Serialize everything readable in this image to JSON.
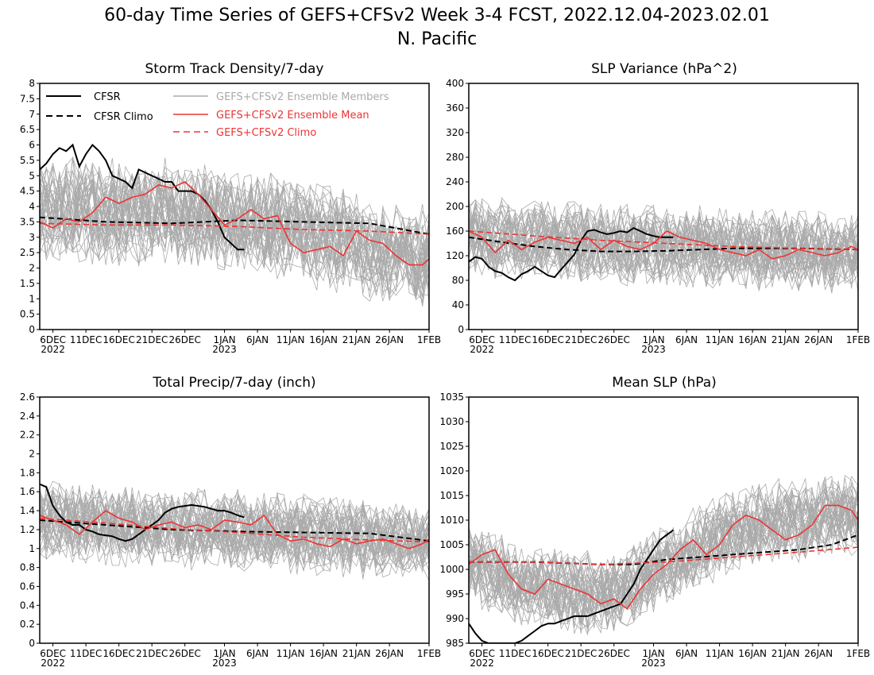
{
  "figure": {
    "title": "60-day Time Series of GEFS+CFSv2 Week 3-4 FCST, 2022.12.04-2023.02.01",
    "region": "N. Pacific"
  },
  "legend": {
    "cfsr": "CFSR",
    "cfsr_climo": "CFSR Climo",
    "members": "GEFS+CFSv2 Ensemble Members",
    "mean": "GEFS+CFSv2 Ensemble Mean",
    "climo": "GEFS+CFSv2 Climo"
  },
  "colors": {
    "cfsr": "#000000",
    "members": "#aaaaaa",
    "mean": "#ee3333",
    "climo": "#ee3333"
  },
  "x_axis": {
    "ticks": [
      {
        "day": 2,
        "label": "6DEC",
        "sub": "2022"
      },
      {
        "day": 7,
        "label": "11DEC",
        "sub": ""
      },
      {
        "day": 12,
        "label": "16DEC",
        "sub": ""
      },
      {
        "day": 17,
        "label": "21DEC",
        "sub": ""
      },
      {
        "day": 22,
        "label": "26DEC",
        "sub": ""
      },
      {
        "day": 28,
        "label": "1JAN",
        "sub": "2023"
      },
      {
        "day": 33,
        "label": "6JAN",
        "sub": ""
      },
      {
        "day": 38,
        "label": "11JAN",
        "sub": ""
      },
      {
        "day": 43,
        "label": "16JAN",
        "sub": ""
      },
      {
        "day": 48,
        "label": "21JAN",
        "sub": ""
      },
      {
        "day": 53,
        "label": "26JAN",
        "sub": ""
      },
      {
        "day": 59,
        "label": "1FEB",
        "sub": ""
      }
    ],
    "range": [
      0,
      59
    ]
  },
  "chart_data": [
    {
      "type": "line",
      "title": "Storm Track Density/7-day",
      "ylim": [
        0,
        8
      ],
      "yticks": [
        "0",
        "0.5",
        "1",
        "1.5",
        "2",
        "2.5",
        "3",
        "3.5",
        "4",
        "4.5",
        "5",
        "5.5",
        "6",
        "6.5",
        "7",
        "7.5",
        "8"
      ],
      "member_band": {
        "center": [
          3.9,
          3.9,
          3.9,
          3.8,
          3.8,
          3.8,
          3.7,
          3.6,
          3.5,
          3.4,
          3.2,
          3.0,
          2.8,
          2.6,
          2.4,
          2.3
        ],
        "spread": 1.8,
        "count": 40
      },
      "series": [
        {
          "name": "CFSR",
          "style": "solid-black",
          "x": [
            0,
            1,
            2,
            3,
            4,
            5,
            6,
            7,
            8,
            9,
            10,
            11,
            12,
            13,
            14,
            15,
            16,
            17,
            18,
            19,
            20,
            21,
            22,
            23,
            24,
            25,
            26,
            27,
            28,
            29,
            30,
            31
          ],
          "values": [
            5.2,
            5.4,
            5.7,
            5.9,
            5.8,
            6.0,
            5.3,
            5.7,
            6.0,
            5.8,
            5.5,
            5.0,
            4.9,
            4.8,
            4.6,
            5.2,
            5.1,
            5.0,
            4.9,
            4.8,
            4.8,
            4.5,
            4.5,
            4.5,
            4.4,
            4.2,
            3.9,
            3.5,
            3.0,
            2.8,
            2.6,
            2.6
          ]
        },
        {
          "name": "CFSR Climo",
          "style": "dashed-black",
          "x": [
            0,
            10,
            20,
            30,
            40,
            50,
            59
          ],
          "values": [
            3.65,
            3.5,
            3.45,
            3.55,
            3.5,
            3.45,
            3.1
          ]
        },
        {
          "name": "GEFS+CFSv2 Ensemble Mean",
          "style": "solid-red",
          "x": [
            0,
            2,
            4,
            6,
            8,
            10,
            12,
            14,
            16,
            18,
            20,
            22,
            24,
            26,
            28,
            30,
            32,
            34,
            36,
            38,
            40,
            42,
            44,
            46,
            48,
            50,
            52,
            54,
            56,
            58,
            59
          ],
          "values": [
            3.5,
            3.3,
            3.6,
            3.5,
            3.8,
            4.3,
            4.1,
            4.3,
            4.4,
            4.7,
            4.6,
            4.8,
            4.4,
            3.9,
            3.4,
            3.6,
            3.9,
            3.6,
            3.7,
            2.8,
            2.5,
            2.6,
            2.7,
            2.4,
            3.2,
            2.9,
            2.8,
            2.4,
            2.1,
            2.1,
            2.3
          ]
        },
        {
          "name": "GEFS+CFSv2 Climo",
          "style": "dashed-red",
          "x": [
            0,
            10,
            20,
            30,
            40,
            50,
            59
          ],
          "values": [
            3.45,
            3.4,
            3.4,
            3.35,
            3.25,
            3.2,
            3.1
          ]
        }
      ]
    },
    {
      "type": "line",
      "title": "SLP Variance (hPa^2)",
      "ylim": [
        0,
        400
      ],
      "yticks": [
        "0",
        "40",
        "80",
        "120",
        "160",
        "200",
        "240",
        "280",
        "320",
        "360",
        "400"
      ],
      "member_band": {
        "center": [
          155,
          150,
          148,
          145,
          142,
          140,
          138,
          137,
          135,
          133,
          132,
          130,
          130,
          128,
          126,
          125
        ],
        "spread": 70,
        "count": 40
      },
      "series": [
        {
          "name": "CFSR",
          "style": "solid-black",
          "x": [
            0,
            1,
            2,
            3,
            4,
            5,
            6,
            7,
            8,
            9,
            10,
            11,
            12,
            13,
            14,
            15,
            16,
            17,
            18,
            19,
            20,
            21,
            22,
            23,
            24,
            25,
            26,
            27,
            28,
            29,
            30,
            31
          ],
          "values": [
            110,
            118,
            115,
            102,
            95,
            92,
            85,
            80,
            90,
            95,
            102,
            95,
            88,
            85,
            98,
            110,
            122,
            145,
            160,
            162,
            158,
            155,
            157,
            160,
            158,
            165,
            160,
            155,
            152,
            150,
            150,
            150
          ]
        },
        {
          "name": "CFSR Climo",
          "style": "dashed-black",
          "x": [
            0,
            5,
            10,
            15,
            20,
            25,
            30,
            40,
            50,
            59
          ],
          "values": [
            150,
            142,
            135,
            130,
            127,
            127,
            128,
            132,
            132,
            130
          ]
        },
        {
          "name": "GEFS+CFSv2 Ensemble Mean",
          "style": "solid-red",
          "x": [
            0,
            2,
            4,
            6,
            8,
            10,
            12,
            14,
            16,
            18,
            20,
            22,
            24,
            26,
            28,
            30,
            32,
            34,
            36,
            38,
            40,
            42,
            44,
            46,
            48,
            50,
            52,
            54,
            56,
            58,
            59
          ],
          "values": [
            160,
            150,
            125,
            145,
            130,
            142,
            150,
            145,
            140,
            150,
            130,
            145,
            135,
            130,
            140,
            160,
            150,
            145,
            140,
            130,
            125,
            120,
            130,
            115,
            120,
            130,
            125,
            120,
            125,
            135,
            130
          ]
        },
        {
          "name": "GEFS+CFSv2 Climo",
          "style": "dashed-red",
          "x": [
            0,
            10,
            20,
            30,
            40,
            50,
            59
          ],
          "values": [
            160,
            152,
            145,
            140,
            135,
            132,
            130
          ]
        }
      ]
    },
    {
      "type": "line",
      "title": "Total Precip/7-day (inch)",
      "ylim": [
        0,
        2.6
      ],
      "yticks": [
        "0",
        "0.2",
        "0.4",
        "0.6",
        "0.8",
        "1",
        "1.2",
        "1.4",
        "1.6",
        "1.8",
        "2",
        "2.2",
        "2.4",
        "2.6"
      ],
      "member_band": {
        "center": [
          1.3,
          1.28,
          1.26,
          1.24,
          1.22,
          1.2,
          1.2,
          1.19,
          1.18,
          1.17,
          1.15,
          1.13,
          1.12,
          1.1,
          1.08,
          1.07
        ],
        "spread": 0.45,
        "count": 40
      },
      "series": [
        {
          "name": "CFSR",
          "style": "solid-black",
          "x": [
            0,
            1,
            2,
            3,
            4,
            5,
            6,
            7,
            8,
            9,
            10,
            11,
            12,
            13,
            14,
            15,
            16,
            17,
            18,
            19,
            20,
            21,
            22,
            23,
            24,
            25,
            26,
            27,
            28,
            29,
            30,
            31
          ],
          "values": [
            1.68,
            1.65,
            1.45,
            1.35,
            1.28,
            1.25,
            1.25,
            1.2,
            1.18,
            1.15,
            1.14,
            1.13,
            1.1,
            1.08,
            1.1,
            1.15,
            1.2,
            1.25,
            1.3,
            1.38,
            1.42,
            1.44,
            1.45,
            1.46,
            1.45,
            1.44,
            1.42,
            1.4,
            1.4,
            1.38,
            1.35,
            1.33
          ]
        },
        {
          "name": "CFSR Climo",
          "style": "dashed-black",
          "x": [
            0,
            10,
            20,
            30,
            40,
            50,
            59
          ],
          "values": [
            1.3,
            1.25,
            1.2,
            1.18,
            1.17,
            1.16,
            1.08
          ]
        },
        {
          "name": "GEFS+CFSv2 Ensemble Mean",
          "style": "solid-red",
          "x": [
            0,
            2,
            4,
            6,
            8,
            10,
            12,
            14,
            16,
            18,
            20,
            22,
            24,
            26,
            28,
            30,
            32,
            34,
            36,
            38,
            40,
            42,
            44,
            46,
            48,
            50,
            52,
            54,
            56,
            58,
            59
          ],
          "values": [
            1.35,
            1.3,
            1.25,
            1.15,
            1.28,
            1.4,
            1.32,
            1.28,
            1.2,
            1.25,
            1.28,
            1.22,
            1.25,
            1.2,
            1.3,
            1.28,
            1.25,
            1.35,
            1.15,
            1.08,
            1.1,
            1.05,
            1.02,
            1.1,
            1.05,
            1.08,
            1.1,
            1.05,
            1.0,
            1.05,
            1.1
          ]
        },
        {
          "name": "GEFS+CFSv2 Climo",
          "style": "dashed-red",
          "x": [
            0,
            10,
            20,
            30,
            40,
            50,
            59
          ],
          "values": [
            1.32,
            1.27,
            1.21,
            1.17,
            1.12,
            1.09,
            1.07
          ]
        }
      ]
    },
    {
      "type": "line",
      "title": "Mean SLP (hPa)",
      "ylim": [
        985,
        1035
      ],
      "yticks": [
        "985",
        "990",
        "995",
        "1000",
        "1005",
        "1010",
        "1015",
        "1020",
        "1025",
        "1030",
        "1035"
      ],
      "member_band": {
        "center": [
          1001,
          999,
          997,
          996,
          995,
          995,
          996,
          999,
          1002,
          1005,
          1007,
          1009,
          1010,
          1010,
          1011,
          1011
        ],
        "spread": 9,
        "count": 40
      },
      "series": [
        {
          "name": "CFSR",
          "style": "solid-black",
          "x": [
            0,
            1,
            2,
            3,
            4,
            5,
            6,
            7,
            8,
            9,
            10,
            11,
            12,
            13,
            14,
            15,
            16,
            17,
            18,
            19,
            20,
            21,
            22,
            23,
            24,
            25,
            26,
            27,
            28,
            29,
            30,
            31
          ],
          "values": [
            989,
            987,
            985.5,
            984.5,
            983.5,
            983,
            983,
            984,
            985.5,
            986.5,
            987.5,
            988.5,
            989,
            989,
            989.5,
            990,
            990.5,
            990.5,
            990.5,
            991,
            991.5,
            992,
            992.5,
            993,
            995,
            997,
            1000,
            1002,
            1004,
            1006,
            1007,
            1008
          ]
        },
        {
          "name": "CFSR Climo",
          "style": "dashed-black",
          "x": [
            0,
            10,
            20,
            25,
            30,
            35,
            40,
            45,
            50,
            55,
            59
          ],
          "values": [
            1001.5,
            1001.5,
            1001,
            1001,
            1002,
            1002.5,
            1003,
            1003.5,
            1004,
            1005,
            1007
          ]
        },
        {
          "name": "GEFS+CFSv2 Ensemble Mean",
          "style": "solid-red",
          "x": [
            0,
            2,
            4,
            6,
            8,
            10,
            12,
            14,
            16,
            18,
            20,
            22,
            24,
            26,
            28,
            30,
            32,
            34,
            36,
            38,
            40,
            42,
            44,
            46,
            48,
            50,
            52,
            54,
            56,
            58,
            59
          ],
          "values": [
            1001,
            1003,
            1004,
            999,
            996,
            995,
            998,
            997,
            996,
            995,
            993,
            994,
            992,
            996,
            999,
            1001,
            1004,
            1006,
            1003,
            1005,
            1009,
            1011,
            1010,
            1008,
            1006,
            1007,
            1009,
            1013,
            1013,
            1012,
            1010
          ]
        },
        {
          "name": "GEFS+CFSv2 Climo",
          "style": "dashed-red",
          "x": [
            0,
            10,
            20,
            30,
            40,
            50,
            59
          ],
          "values": [
            1001.5,
            1001.5,
            1001,
            1001.5,
            1002.5,
            1003.5,
            1004.5
          ]
        }
      ]
    }
  ]
}
